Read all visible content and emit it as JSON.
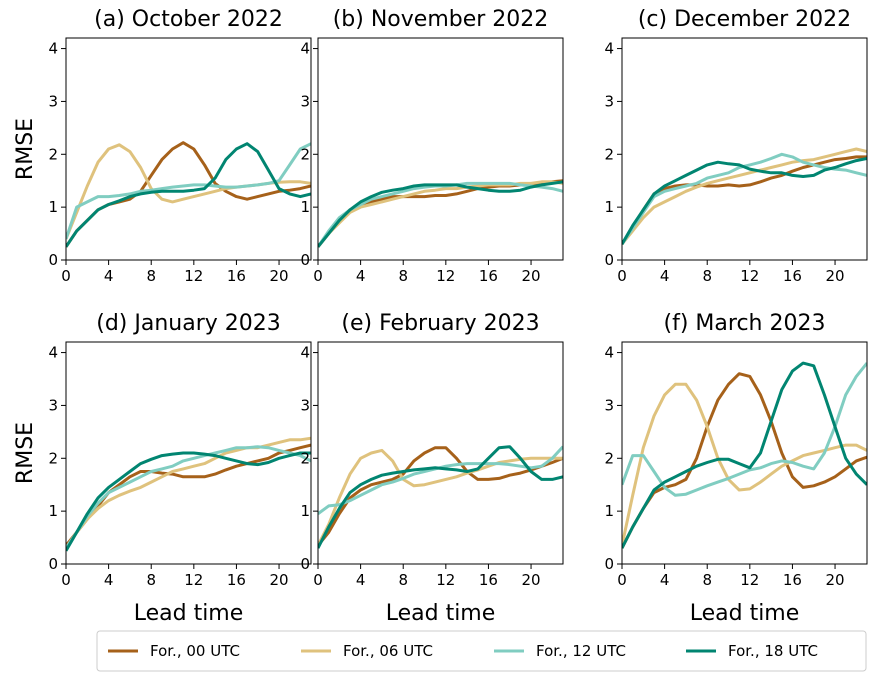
{
  "legend": [
    {
      "name": "For., 00 UTC",
      "color": "#a6611a"
    },
    {
      "name": "For., 06 UTC",
      "color": "#dfc27d"
    },
    {
      "name": "For., 12 UTC",
      "color": "#80cdc1"
    },
    {
      "name": "For., 18 UTC",
      "color": "#018571"
    }
  ],
  "chart_data": [
    {
      "type": "line",
      "title": "(a) October 2022",
      "ylabel": "RMSE",
      "x": [
        0,
        1,
        2,
        3,
        4,
        5,
        6,
        7,
        8,
        9,
        10,
        11,
        12,
        13,
        14,
        15,
        16,
        17,
        18,
        19,
        20,
        21,
        22,
        23
      ],
      "xlim": [
        0,
        23
      ],
      "ylim": [
        0,
        4.2
      ],
      "xticks": [
        0,
        4,
        8,
        12,
        16,
        20
      ],
      "yticks": [
        0,
        1,
        2,
        3,
        4
      ],
      "series": [
        {
          "values": [
            0.25,
            0.55,
            0.75,
            0.95,
            1.05,
            1.1,
            1.15,
            1.3,
            1.6,
            1.9,
            2.1,
            2.22,
            2.1,
            1.8,
            1.45,
            1.3,
            1.2,
            1.15,
            1.2,
            1.25,
            1.3,
            1.32,
            1.35,
            1.4
          ]
        },
        {
          "values": [
            0.4,
            0.9,
            1.4,
            1.85,
            2.1,
            2.18,
            2.05,
            1.75,
            1.35,
            1.15,
            1.1,
            1.15,
            1.2,
            1.25,
            1.3,
            1.35,
            1.38,
            1.4,
            1.42,
            1.45,
            1.47,
            1.48,
            1.48,
            1.45
          ]
        },
        {
          "values": [
            0.4,
            1.0,
            1.1,
            1.2,
            1.2,
            1.22,
            1.25,
            1.3,
            1.32,
            1.35,
            1.38,
            1.4,
            1.42,
            1.42,
            1.4,
            1.38,
            1.38,
            1.4,
            1.42,
            1.45,
            1.5,
            1.8,
            2.1,
            2.2
          ]
        },
        {
          "values": [
            0.25,
            0.55,
            0.75,
            0.95,
            1.05,
            1.12,
            1.2,
            1.25,
            1.28,
            1.3,
            1.3,
            1.3,
            1.32,
            1.35,
            1.55,
            1.9,
            2.1,
            2.2,
            2.05,
            1.7,
            1.35,
            1.25,
            1.2,
            1.25
          ]
        }
      ]
    },
    {
      "type": "line",
      "title": "(b) November 2022",
      "x": [
        0,
        1,
        2,
        3,
        4,
        5,
        6,
        7,
        8,
        9,
        10,
        11,
        12,
        13,
        14,
        15,
        16,
        17,
        18,
        19,
        20,
        21,
        22,
        23
      ],
      "xlim": [
        0,
        23
      ],
      "ylim": [
        0,
        4.2
      ],
      "xticks": [
        0,
        4,
        8,
        12,
        16,
        20
      ],
      "yticks": [
        0,
        1,
        2,
        3,
        4
      ],
      "series": [
        {
          "values": [
            0.25,
            0.5,
            0.75,
            0.95,
            1.05,
            1.1,
            1.15,
            1.2,
            1.2,
            1.2,
            1.2,
            1.22,
            1.22,
            1.25,
            1.3,
            1.35,
            1.38,
            1.4,
            1.4,
            1.42,
            1.42,
            1.45,
            1.48,
            1.5
          ]
        },
        {
          "values": [
            0.25,
            0.5,
            0.7,
            0.9,
            1.0,
            1.05,
            1.1,
            1.15,
            1.2,
            1.25,
            1.3,
            1.32,
            1.35,
            1.35,
            1.38,
            1.4,
            1.42,
            1.42,
            1.42,
            1.45,
            1.45,
            1.48,
            1.48,
            1.45
          ]
        },
        {
          "values": [
            0.25,
            0.55,
            0.8,
            0.95,
            1.05,
            1.15,
            1.2,
            1.25,
            1.3,
            1.35,
            1.38,
            1.4,
            1.4,
            1.42,
            1.45,
            1.45,
            1.45,
            1.45,
            1.45,
            1.42,
            1.4,
            1.38,
            1.35,
            1.3
          ]
        },
        {
          "values": [
            0.25,
            0.5,
            0.75,
            0.95,
            1.1,
            1.2,
            1.28,
            1.32,
            1.35,
            1.4,
            1.42,
            1.42,
            1.42,
            1.42,
            1.38,
            1.35,
            1.32,
            1.3,
            1.3,
            1.32,
            1.38,
            1.42,
            1.45,
            1.48
          ]
        }
      ]
    },
    {
      "type": "line",
      "title": "(c) December 2022",
      "x": [
        0,
        1,
        2,
        3,
        4,
        5,
        6,
        7,
        8,
        9,
        10,
        11,
        12,
        13,
        14,
        15,
        16,
        17,
        18,
        19,
        20,
        21,
        22,
        23
      ],
      "xlim": [
        0,
        23
      ],
      "ylim": [
        0,
        4.2
      ],
      "xticks": [
        0,
        4,
        8,
        12,
        16,
        20
      ],
      "yticks": [
        0,
        1,
        2,
        3,
        4
      ],
      "series": [
        {
          "values": [
            0.3,
            0.6,
            0.95,
            1.25,
            1.35,
            1.4,
            1.42,
            1.42,
            1.4,
            1.4,
            1.42,
            1.4,
            1.42,
            1.48,
            1.55,
            1.6,
            1.68,
            1.75,
            1.8,
            1.85,
            1.9,
            1.92,
            1.95,
            1.95
          ]
        },
        {
          "values": [
            0.3,
            0.55,
            0.8,
            1.0,
            1.1,
            1.2,
            1.3,
            1.38,
            1.45,
            1.5,
            1.55,
            1.6,
            1.65,
            1.7,
            1.75,
            1.8,
            1.85,
            1.88,
            1.9,
            1.95,
            2.0,
            2.05,
            2.1,
            2.05
          ]
        },
        {
          "values": [
            0.3,
            0.6,
            0.9,
            1.2,
            1.3,
            1.35,
            1.4,
            1.45,
            1.55,
            1.6,
            1.65,
            1.75,
            1.8,
            1.85,
            1.92,
            2.0,
            1.95,
            1.85,
            1.8,
            1.75,
            1.72,
            1.7,
            1.65,
            1.6
          ]
        },
        {
          "values": [
            0.3,
            0.65,
            0.95,
            1.25,
            1.4,
            1.5,
            1.6,
            1.7,
            1.8,
            1.85,
            1.82,
            1.8,
            1.72,
            1.68,
            1.65,
            1.65,
            1.6,
            1.58,
            1.6,
            1.7,
            1.75,
            1.82,
            1.88,
            1.92
          ]
        }
      ]
    },
    {
      "type": "line",
      "title": "(d) January 2023",
      "ylabel": "RMSE",
      "xlabel": "Lead time",
      "x": [
        0,
        1,
        2,
        3,
        4,
        5,
        6,
        7,
        8,
        9,
        10,
        11,
        12,
        13,
        14,
        15,
        16,
        17,
        18,
        19,
        20,
        21,
        22,
        23
      ],
      "xlim": [
        0,
        23
      ],
      "ylim": [
        0,
        4.2
      ],
      "xticks": [
        0,
        4,
        8,
        12,
        16,
        20
      ],
      "yticks": [
        0,
        1,
        2,
        3,
        4
      ],
      "series": [
        {
          "values": [
            0.35,
            0.6,
            0.85,
            1.1,
            1.35,
            1.5,
            1.65,
            1.75,
            1.75,
            1.72,
            1.7,
            1.65,
            1.65,
            1.65,
            1.7,
            1.78,
            1.85,
            1.9,
            1.95,
            2.0,
            2.1,
            2.15,
            2.2,
            2.25
          ]
        },
        {
          "values": [
            0.3,
            0.6,
            0.85,
            1.05,
            1.2,
            1.3,
            1.38,
            1.45,
            1.55,
            1.65,
            1.75,
            1.8,
            1.85,
            1.9,
            2.0,
            2.1,
            2.15,
            2.2,
            2.2,
            2.25,
            2.3,
            2.35,
            2.35,
            2.38
          ]
        },
        {
          "values": [
            0.3,
            0.6,
            0.9,
            1.15,
            1.35,
            1.45,
            1.55,
            1.65,
            1.75,
            1.8,
            1.85,
            1.95,
            2.0,
            2.05,
            2.1,
            2.15,
            2.2,
            2.2,
            2.22,
            2.2,
            2.15,
            2.1,
            2.05,
            1.95
          ]
        },
        {
          "values": [
            0.25,
            0.6,
            0.95,
            1.25,
            1.45,
            1.6,
            1.75,
            1.9,
            1.98,
            2.05,
            2.08,
            2.1,
            2.1,
            2.08,
            2.05,
            2.0,
            1.95,
            1.9,
            1.88,
            1.92,
            2.0,
            2.05,
            2.1,
            2.1
          ]
        }
      ]
    },
    {
      "type": "line",
      "title": "(e) February 2023",
      "xlabel": "Lead time",
      "x": [
        0,
        1,
        2,
        3,
        4,
        5,
        6,
        7,
        8,
        9,
        10,
        11,
        12,
        13,
        14,
        15,
        16,
        17,
        18,
        19,
        20,
        21,
        22,
        23
      ],
      "xlim": [
        0,
        23
      ],
      "ylim": [
        0,
        4.2
      ],
      "xticks": [
        0,
        4,
        8,
        12,
        16,
        20
      ],
      "yticks": [
        0,
        1,
        2,
        3,
        4
      ],
      "series": [
        {
          "values": [
            0.35,
            0.6,
            0.95,
            1.25,
            1.4,
            1.5,
            1.55,
            1.6,
            1.7,
            1.95,
            2.1,
            2.2,
            2.2,
            2.0,
            1.75,
            1.6,
            1.6,
            1.62,
            1.68,
            1.72,
            1.78,
            1.85,
            1.92,
            2.0
          ]
        },
        {
          "values": [
            0.35,
            0.75,
            1.25,
            1.7,
            2.0,
            2.1,
            2.15,
            1.95,
            1.6,
            1.48,
            1.5,
            1.55,
            1.6,
            1.65,
            1.72,
            1.78,
            1.85,
            1.92,
            1.95,
            1.98,
            2.0,
            2.0,
            2.0,
            2.0
          ]
        },
        {
          "values": [
            0.95,
            1.1,
            1.12,
            1.2,
            1.3,
            1.4,
            1.5,
            1.55,
            1.62,
            1.7,
            1.75,
            1.8,
            1.85,
            1.88,
            1.9,
            1.9,
            1.9,
            1.9,
            1.88,
            1.85,
            1.82,
            1.85,
            2.0,
            2.22
          ]
        },
        {
          "values": [
            0.3,
            0.7,
            1.05,
            1.35,
            1.5,
            1.6,
            1.68,
            1.72,
            1.75,
            1.78,
            1.8,
            1.82,
            1.8,
            1.78,
            1.75,
            1.8,
            2.0,
            2.2,
            2.22,
            2.0,
            1.75,
            1.6,
            1.6,
            1.65
          ]
        }
      ]
    },
    {
      "type": "line",
      "title": "(f) March 2023",
      "xlabel": "Lead time",
      "x": [
        0,
        1,
        2,
        3,
        4,
        5,
        6,
        7,
        8,
        9,
        10,
        11,
        12,
        13,
        14,
        15,
        16,
        17,
        18,
        19,
        20,
        21,
        22,
        23
      ],
      "xlim": [
        0,
        23
      ],
      "ylim": [
        0,
        4.2
      ],
      "xticks": [
        0,
        4,
        8,
        12,
        16,
        20
      ],
      "yticks": [
        0,
        1,
        2,
        3,
        4
      ],
      "series": [
        {
          "values": [
            0.3,
            0.7,
            1.05,
            1.35,
            1.45,
            1.5,
            1.6,
            2.0,
            2.6,
            3.1,
            3.4,
            3.6,
            3.55,
            3.2,
            2.7,
            2.1,
            1.65,
            1.45,
            1.48,
            1.55,
            1.65,
            1.8,
            1.95,
            2.02
          ]
        },
        {
          "values": [
            0.35,
            1.3,
            2.2,
            2.8,
            3.2,
            3.4,
            3.4,
            3.1,
            2.6,
            2.0,
            1.6,
            1.4,
            1.42,
            1.55,
            1.7,
            1.85,
            1.95,
            2.05,
            2.1,
            2.15,
            2.2,
            2.25,
            2.25,
            2.15
          ]
        },
        {
          "values": [
            1.5,
            2.05,
            2.05,
            1.75,
            1.45,
            1.3,
            1.32,
            1.4,
            1.48,
            1.55,
            1.62,
            1.7,
            1.78,
            1.82,
            1.9,
            1.95,
            1.92,
            1.85,
            1.8,
            2.1,
            2.6,
            3.2,
            3.55,
            3.8
          ]
        },
        {
          "values": [
            0.3,
            0.7,
            1.05,
            1.4,
            1.55,
            1.65,
            1.75,
            1.85,
            1.92,
            1.98,
            1.98,
            1.9,
            1.82,
            2.1,
            2.7,
            3.3,
            3.65,
            3.8,
            3.75,
            3.2,
            2.6,
            2.0,
            1.7,
            1.5
          ]
        }
      ]
    }
  ]
}
